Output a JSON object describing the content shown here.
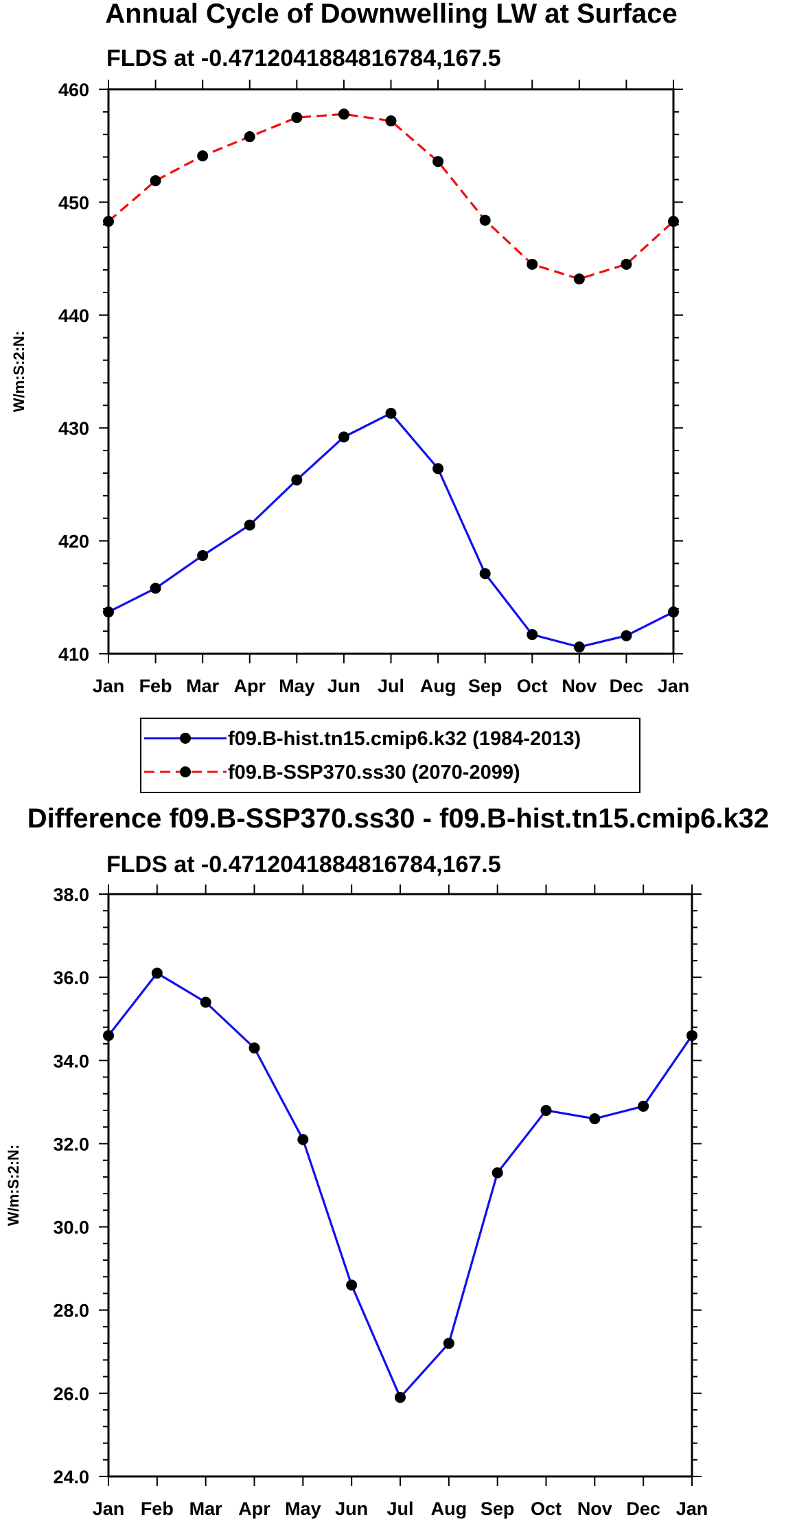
{
  "chart_data": [
    {
      "type": "line",
      "title": "Annual Cycle of Downwelling LW at Surface",
      "subtitle": "FLDS at -0.4712041884816784,167.5",
      "ylabel": "W/m:S:2:N:",
      "xlabel": "",
      "categories": [
        "Jan",
        "Feb",
        "Mar",
        "Apr",
        "May",
        "Jun",
        "Jul",
        "Aug",
        "Sep",
        "Oct",
        "Nov",
        "Dec",
        "Jan"
      ],
      "ylim": [
        410,
        460
      ],
      "yticks": [
        410,
        420,
        430,
        440,
        450,
        460
      ],
      "ytick_labels": [
        "410",
        "420",
        "430",
        "440",
        "450",
        "460"
      ],
      "grid": false,
      "legend_position": "bottom-center",
      "series": [
        {
          "name": "f09.B-hist.tn15.cmip6.k32 (1984-2013)",
          "color": "#1010ee",
          "dash": "solid",
          "values": [
            413.7,
            415.8,
            418.7,
            421.4,
            425.4,
            429.2,
            431.3,
            426.4,
            417.1,
            411.7,
            410.6,
            411.6,
            413.7
          ]
        },
        {
          "name": "f09.B-SSP370.ss30 (2070-2099)",
          "color": "#ee1010",
          "dash": "dashed",
          "values": [
            448.3,
            451.9,
            454.1,
            455.8,
            457.5,
            457.8,
            457.2,
            453.6,
            448.4,
            444.5,
            443.2,
            444.5,
            448.3
          ]
        }
      ]
    },
    {
      "type": "line",
      "title": "Difference f09.B-SSP370.ss30 - f09.B-hist.tn15.cmip6.k32",
      "subtitle": "FLDS at -0.4712041884816784,167.5",
      "ylabel": "W/m:S:2:N:",
      "xlabel": "",
      "categories": [
        "Jan",
        "Feb",
        "Mar",
        "Apr",
        "May",
        "Jun",
        "Jul",
        "Aug",
        "Sep",
        "Oct",
        "Nov",
        "Dec",
        "Jan"
      ],
      "ylim": [
        24,
        38
      ],
      "yticks": [
        24,
        26,
        28,
        30,
        32,
        34,
        36,
        38
      ],
      "ytick_labels": [
        "24.0",
        "26.0",
        "28.0",
        "30.0",
        "32.0",
        "34.0",
        "36.0",
        "38.0"
      ],
      "grid": false,
      "series": [
        {
          "name": "Difference",
          "color": "#1010ee",
          "dash": "solid",
          "values": [
            34.6,
            36.1,
            35.4,
            34.3,
            32.1,
            28.6,
            25.9,
            27.2,
            31.3,
            32.8,
            32.6,
            32.9,
            34.6
          ]
        }
      ]
    }
  ]
}
